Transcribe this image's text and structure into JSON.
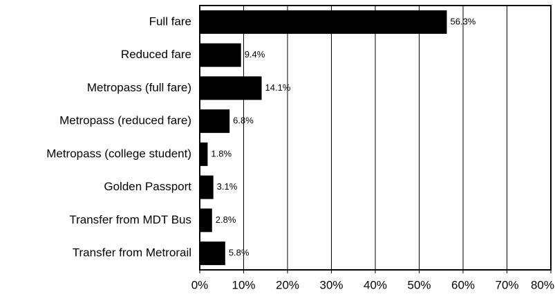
{
  "chart_data": {
    "type": "bar",
    "orientation": "horizontal",
    "categories": [
      "Full fare",
      "Reduced fare",
      "Metropass (full fare)",
      "Metropass (reduced fare)",
      "Metropass (college student)",
      "Golden Passport",
      "Transfer from MDT Bus",
      "Transfer from Metrorail"
    ],
    "values": [
      56.3,
      9.4,
      14.1,
      6.8,
      1.8,
      3.1,
      2.8,
      5.8
    ],
    "value_labels": [
      "56.3%",
      "9.4%",
      "14.1%",
      "6.8%",
      "1.8%",
      "3.1%",
      "2.8%",
      "5.8%"
    ],
    "color": "#000000",
    "xlim": [
      0,
      80
    ],
    "xticks": [
      {
        "value": 0,
        "label": "0%"
      },
      {
        "value": 10,
        "label": "10%"
      },
      {
        "value": 20,
        "label": "20%"
      },
      {
        "value": 30,
        "label": "30%"
      },
      {
        "value": 40,
        "label": "40%"
      },
      {
        "value": 50,
        "label": "50%"
      },
      {
        "value": 60,
        "label": "60%"
      },
      {
        "value": 70,
        "label": "70%"
      },
      {
        "value": 80,
        "label": "80%"
      }
    ],
    "grid": true
  }
}
